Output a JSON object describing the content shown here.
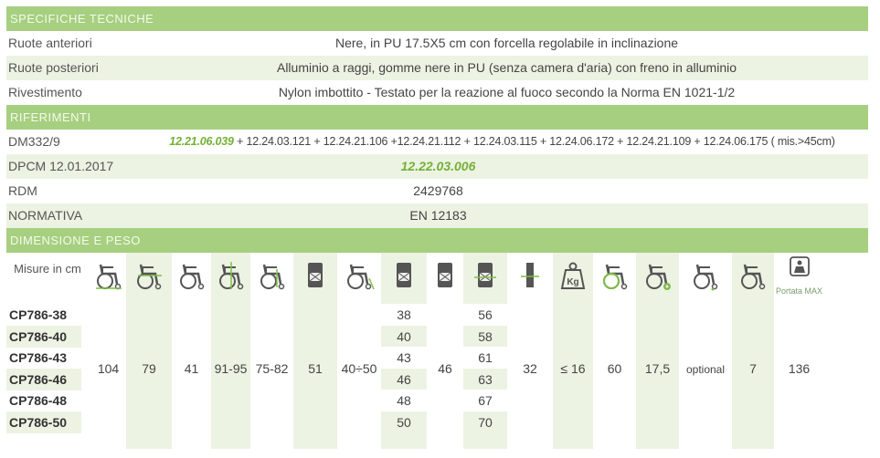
{
  "specifiche": {
    "title": "SPECIFICHE TECNICHE",
    "rows": [
      {
        "label": "Ruote anteriori",
        "value": "Nere, in PU 17.5X5 cm con forcella regolabile in inclinazione"
      },
      {
        "label": "Ruote posteriori",
        "value": "Alluminio a raggi, gomme nere in PU (senza camera d'aria) con freno in alluminio"
      },
      {
        "label": "Rivestimento",
        "value": "Nylon imbottito - Testato per la reazione al fuoco secondo la Norma EN 1021-1/2"
      }
    ]
  },
  "riferimenti": {
    "title": "RIFERIMENTI",
    "dm_label": "DM332/9",
    "dm_code": "12.21.06.039",
    "dm_rest": " + 12.24.03.121 + 12.24.21.106 +12.24.21.112 + 12.24.03.115 + 12.24.06.172 + 12.24.21.109 + 12.24.06.175 ( mis.>45cm)",
    "dpcm_label": "DPCM 12.01.2017",
    "dpcm_code": "12.22.03.006",
    "rdm_label": "RDM",
    "rdm_value": "2429768",
    "norm_label": "NORMATIVA",
    "norm_value": "EN 12183"
  },
  "dimensioni": {
    "title": "DIMENSIONE E PESO",
    "misure_label": "Misure in cm",
    "portata_label": "Portata MAX",
    "codes": [
      "CP786-38",
      "CP786-40",
      "CP786-43",
      "CP786-46",
      "CP786-48",
      "CP786-50"
    ],
    "icons": [
      "wheelchair-length-icon",
      "wheelchair-folded-length-icon",
      "wheelchair-height-icon",
      "wheelchair-armrest-height-icon",
      "wheelchair-seat-height-icon",
      "wheelchair-width-icon",
      "wheelchair-depth-icon",
      "seat-width-icon",
      "seat-depth-icon",
      "overall-width-icon",
      "folded-width-icon",
      "weight-icon",
      "rear-wheel-icon",
      "front-wheel-icon",
      "anti-tip-icon",
      "wheel-size-icon",
      "max-load-icon"
    ],
    "col_104": "104",
    "col_79": "79",
    "col_41": "41",
    "col_9195": "91-95",
    "col_7582": "75-82",
    "col_51": "51",
    "col_4050": "40÷50",
    "seat_widths": [
      "38",
      "40",
      "43",
      "46",
      "48",
      "50"
    ],
    "col_46": "46",
    "overall_widths": [
      "56",
      "58",
      "61",
      "63",
      "67",
      "70"
    ],
    "col_32": "32",
    "col_weight": "≤ 16",
    "col_60": "60",
    "col_175": "17,5",
    "col_optional": "optional",
    "col_7": "7",
    "col_136": "136",
    "accent": "#a6cf7f",
    "icon_color": "#555555",
    "icon_accent": "#7cc043"
  }
}
